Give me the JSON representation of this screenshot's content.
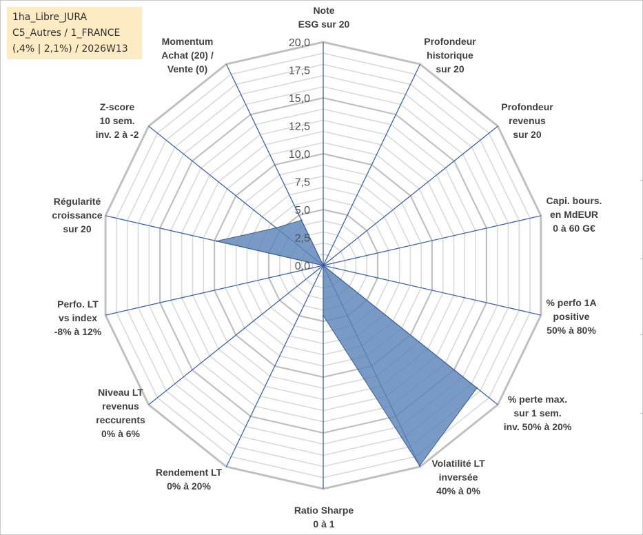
{
  "info_box": {
    "line1": "1ha_Libre_JURA",
    "line2": "C5_Autres / 1_FRANCE",
    "line3": "(,4% | 2,1%) / 2026W13"
  },
  "chart_data": {
    "type": "radar",
    "title": "",
    "rlim": [
      0,
      20
    ],
    "ticks": [
      "0,0",
      "2,5",
      "5,0",
      "7,5",
      "10,0",
      "12,5",
      "15,0",
      "17,5",
      "20,0"
    ],
    "tick_values": [
      0,
      2.5,
      5,
      7.5,
      10,
      12.5,
      15,
      17.5,
      20
    ],
    "grid": true,
    "axes": [
      [
        "Note",
        "ESG sur 20"
      ],
      [
        "Profondeur",
        "historique",
        "sur 20"
      ],
      [
        "Profondeur",
        "revenus",
        "sur 20"
      ],
      [
        "Capi. bours.",
        "en MdEUR",
        "0 à 60 G€"
      ],
      [
        "% perfo 1A",
        "positive",
        "50% à 80%"
      ],
      [
        "% perte max.",
        "sur 1 sem.",
        "inv. 50% à 20%"
      ],
      [
        "Volatilité LT",
        "inversée",
        "40% à 0%"
      ],
      [
        "Ratio Sharpe",
        "0 à 1"
      ],
      [
        "Rendement LT",
        "0% à 20%"
      ],
      [
        "Niveau LT",
        "revenus",
        "reccurents",
        "0% à 6%"
      ],
      [
        "Perfo. LT",
        "vs index",
        "-8% à 12%"
      ],
      [
        "Régularité",
        "croissance",
        "sur 20"
      ],
      [
        "Z-score",
        "10 sem.",
        "inv. 2 à -2"
      ],
      [
        "Momentum",
        "Achat (20) /",
        "Vente (0)"
      ]
    ],
    "series": [
      {
        "values": [
          0,
          0,
          0,
          0,
          0,
          17.6,
          19.9,
          4.5,
          0,
          0,
          0,
          9.8,
          5.4,
          4.5
        ]
      }
    ],
    "colors": {
      "fill": "#5b84b8",
      "fill_opacity": 0.82,
      "stroke": "#3a5f92",
      "spoke": "#3b62b0",
      "grid_outer": "#c0c0c0",
      "grid_inner": "#d9d9d9"
    }
  }
}
